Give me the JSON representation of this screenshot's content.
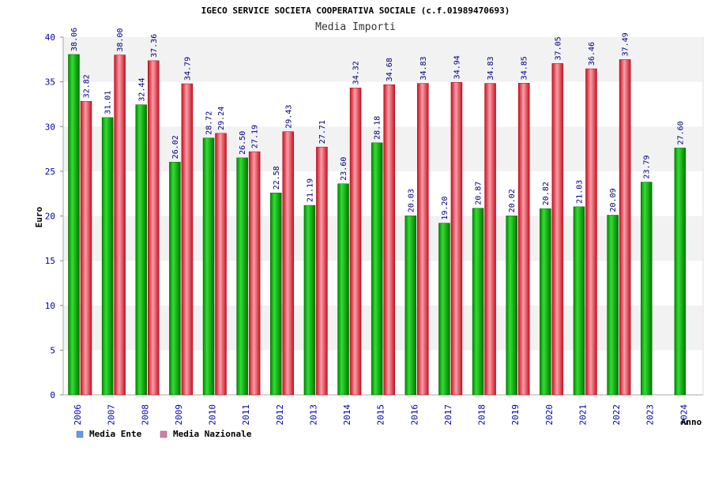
{
  "chart_data": {
    "type": "bar",
    "title": "IGECO SERVICE SOCIETA COOPERATIVA SOCIALE (c.f.01989470693)",
    "subtitle": "Media Importi",
    "xlabel": "Anno",
    "ylabel": "Euro",
    "ylim": [
      0,
      40
    ],
    "yticks": [
      0,
      5,
      10,
      15,
      20,
      25,
      30,
      35,
      40
    ],
    "categories": [
      "2006",
      "2007",
      "2008",
      "2009",
      "2010",
      "2011",
      "2012",
      "2013",
      "2014",
      "2015",
      "2016",
      "2017",
      "2018",
      "2019",
      "2020",
      "2021",
      "2022",
      "2023",
      "2024"
    ],
    "series": [
      {
        "name": "Media Ente",
        "color": "#00aa00",
        "legend_color": "#6699ee",
        "values": [
          38.06,
          31.01,
          32.44,
          26.02,
          28.72,
          26.5,
          22.58,
          21.19,
          23.6,
          28.18,
          20.03,
          19.2,
          20.87,
          20.02,
          20.82,
          21.03,
          20.09,
          23.79,
          27.6
        ],
        "labels": [
          "38.06",
          "31.01",
          "32.44",
          "26.02",
          "28.72",
          "26.50",
          "22.58",
          "21.19",
          "23.60",
          "28.18",
          "20.03",
          "19.20",
          "20.87",
          "20.02",
          "20.82",
          "21.03",
          "20.09",
          "23.79",
          "27.60"
        ]
      },
      {
        "name": "Media Nazionale",
        "color": "#dd2233",
        "legend_color": "#dd77aa",
        "values": [
          32.82,
          38.0,
          37.36,
          34.79,
          29.24,
          27.19,
          29.43,
          27.71,
          34.32,
          34.68,
          34.83,
          34.94,
          34.83,
          34.85,
          37.05,
          36.46,
          37.49,
          null,
          null
        ],
        "labels": [
          "32.82",
          "38.00",
          "37.36",
          "34.79",
          "29.24",
          "27.19",
          "29.43",
          "27.71",
          "34.32",
          "34.68",
          "34.83",
          "34.94",
          "34.83",
          "34.85",
          "37.05",
          "36.46",
          "37.49",
          null,
          null
        ]
      }
    ],
    "grid": true,
    "legend_position": "bottom-left"
  }
}
